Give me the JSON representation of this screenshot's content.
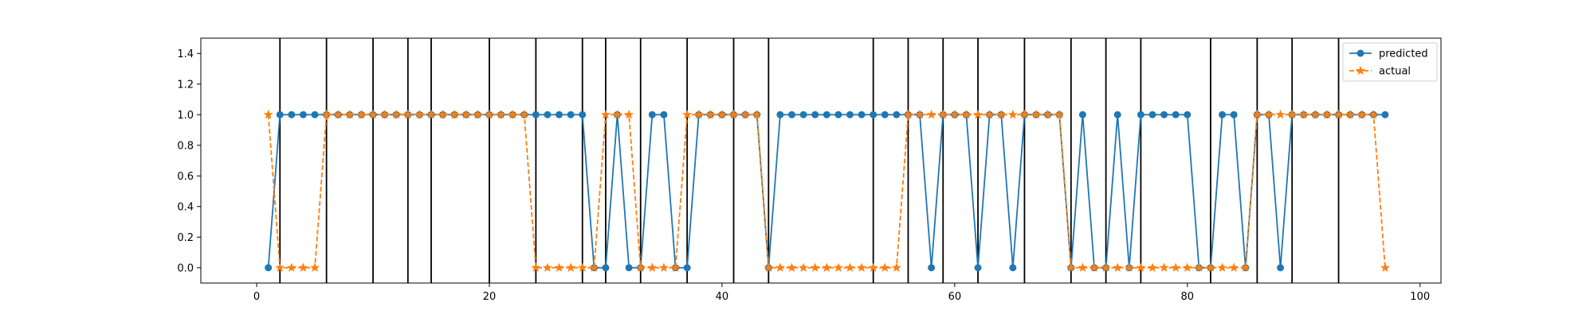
{
  "chart_data": {
    "type": "line",
    "title": "",
    "xlabel": "",
    "ylabel": "",
    "xlim": [
      -4.8,
      101.8
    ],
    "ylim": [
      -0.1,
      1.5
    ],
    "xticks": [
      0,
      20,
      40,
      60,
      80,
      100
    ],
    "xtick_labels": [
      "0",
      "20",
      "40",
      "60",
      "80",
      "100"
    ],
    "yticks": [
      0.0,
      0.2,
      0.4,
      0.6,
      0.8,
      1.0,
      1.2,
      1.4
    ],
    "ytick_labels": [
      "0.0",
      "0.2",
      "0.4",
      "0.6",
      "0.8",
      "1.0",
      "1.2",
      "1.4"
    ],
    "grid": false,
    "legend_position": "top-right",
    "vertical_lines": [
      2,
      6,
      10,
      13,
      15,
      20,
      24,
      28,
      30,
      33,
      37,
      41,
      44,
      53,
      56,
      59,
      62,
      66,
      70,
      73,
      76,
      82,
      86,
      89,
      93
    ],
    "x": [
      1,
      2,
      3,
      4,
      5,
      6,
      7,
      8,
      9,
      10,
      11,
      12,
      13,
      14,
      15,
      16,
      17,
      18,
      19,
      20,
      21,
      22,
      23,
      24,
      25,
      26,
      27,
      28,
      29,
      30,
      31,
      32,
      33,
      34,
      35,
      36,
      37,
      38,
      39,
      40,
      41,
      42,
      43,
      44,
      45,
      46,
      47,
      48,
      49,
      50,
      51,
      52,
      53,
      54,
      55,
      56,
      57,
      58,
      59,
      60,
      61,
      62,
      63,
      64,
      65,
      66,
      67,
      68,
      69,
      70,
      71,
      72,
      73,
      74,
      75,
      76,
      77,
      78,
      79,
      80,
      81,
      82,
      83,
      84,
      85,
      86,
      87,
      88,
      89,
      90,
      91,
      92,
      93,
      94,
      95,
      96,
      97
    ],
    "series": [
      {
        "name": "predicted",
        "color": "#1f77b4",
        "marker": "circle",
        "line_style": "solid",
        "values": [
          0,
          1,
          1,
          1,
          1,
          1,
          1,
          1,
          1,
          1,
          1,
          1,
          1,
          1,
          1,
          1,
          1,
          1,
          1,
          1,
          1,
          1,
          1,
          1,
          1,
          1,
          1,
          1,
          0,
          0,
          1,
          0,
          0,
          1,
          1,
          0,
          0,
          1,
          1,
          1,
          1,
          1,
          1,
          0,
          1,
          1,
          1,
          1,
          1,
          1,
          1,
          1,
          1,
          1,
          1,
          1,
          1,
          0,
          1,
          1,
          1,
          0,
          1,
          1,
          0,
          1,
          1,
          1,
          1,
          0,
          1,
          0,
          0,
          1,
          0,
          1,
          1,
          1,
          1,
          1,
          0,
          0,
          1,
          1,
          0,
          1,
          1,
          0,
          1,
          1,
          1,
          1,
          1,
          1,
          1,
          1,
          1
        ]
      },
      {
        "name": "actual",
        "color": "#ff7f0e",
        "marker": "star",
        "line_style": "dashed",
        "values": [
          1,
          0,
          0,
          0,
          0,
          1,
          1,
          1,
          1,
          1,
          1,
          1,
          1,
          1,
          1,
          1,
          1,
          1,
          1,
          1,
          1,
          1,
          1,
          0,
          0,
          0,
          0,
          0,
          0,
          1,
          1,
          1,
          0,
          0,
          0,
          0,
          1,
          1,
          1,
          1,
          1,
          1,
          1,
          0,
          0,
          0,
          0,
          0,
          0,
          0,
          0,
          0,
          0,
          0,
          0,
          1,
          1,
          1,
          1,
          1,
          1,
          1,
          1,
          1,
          1,
          1,
          1,
          1,
          1,
          0,
          0,
          0,
          0,
          0,
          0,
          0,
          0,
          0,
          0,
          0,
          0,
          0,
          0,
          0,
          0,
          1,
          1,
          1,
          1,
          1,
          1,
          1,
          1,
          1,
          1,
          1,
          0
        ]
      }
    ]
  }
}
